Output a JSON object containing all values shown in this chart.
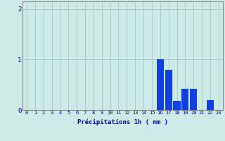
{
  "categories": [
    0,
    1,
    2,
    3,
    4,
    5,
    6,
    7,
    8,
    9,
    10,
    11,
    12,
    13,
    14,
    15,
    16,
    17,
    18,
    19,
    20,
    21,
    22,
    23
  ],
  "values": [
    0,
    0,
    0,
    0,
    0,
    0,
    0,
    0,
    0,
    0,
    0,
    0,
    0,
    0,
    0,
    0,
    1.0,
    0.8,
    0.18,
    0.42,
    0.42,
    0,
    0.2,
    0
  ],
  "bar_color": "#1040e0",
  "background_color": "#cceae8",
  "grid_color": "#aacccc",
  "axis_color": "#0000cc",
  "spine_color": "#888888",
  "xlabel": "Précipitations 1h ( mm )",
  "ylim": [
    0,
    2.15
  ],
  "yticks": [
    0,
    1,
    2
  ],
  "xlim": [
    -0.5,
    23.5
  ],
  "xlabel_fontsize": 6.5,
  "tick_fontsize": 5.0
}
